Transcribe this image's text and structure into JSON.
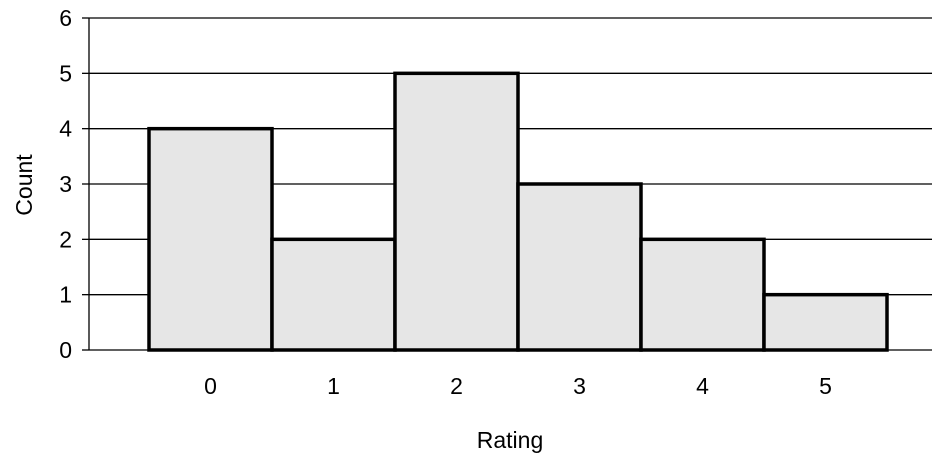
{
  "chart_data": {
    "type": "bar",
    "title": "",
    "xlabel": "Rating",
    "ylabel": "Count",
    "categories": [
      "0",
      "1",
      "2",
      "3",
      "4",
      "5"
    ],
    "values": [
      4,
      2,
      5,
      3,
      2,
      1
    ],
    "ylim": [
      0,
      6
    ],
    "yticks": [
      0,
      1,
      2,
      3,
      4,
      5,
      6
    ],
    "grid": "horizontal",
    "legend": "none",
    "bar_fill": "#e6e6e6",
    "bar_stroke": "#000000",
    "grid_color": "#000000"
  }
}
